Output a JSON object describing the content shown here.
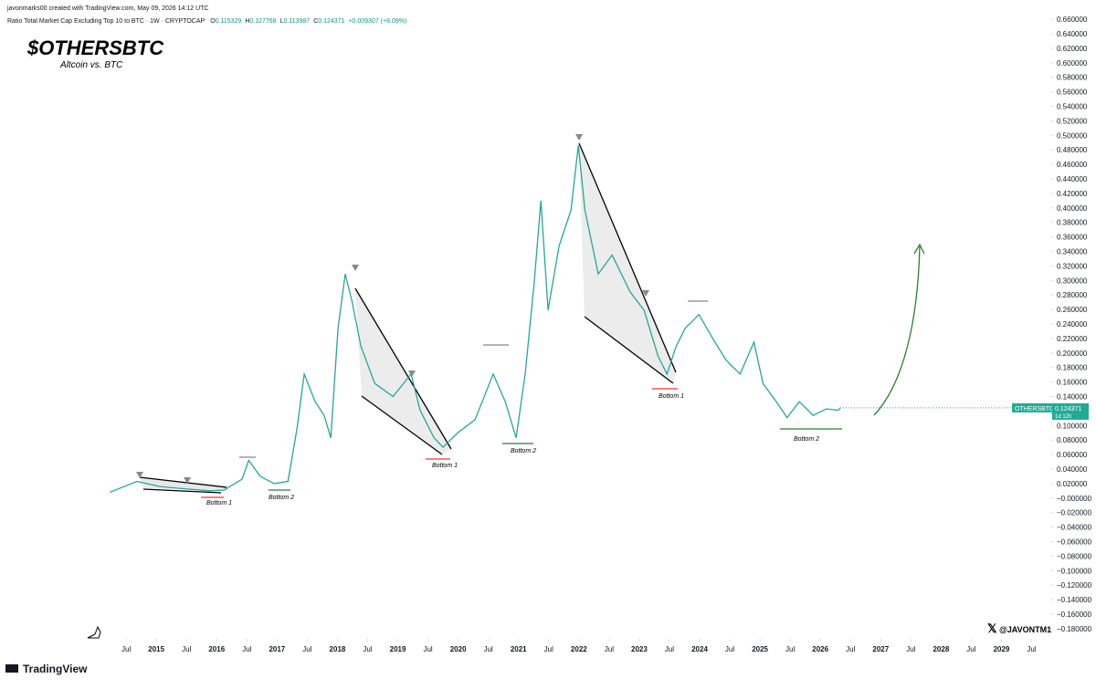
{
  "header": {
    "credit": "javonmarks00 created with TradingView.com, May 09, 2026 14:12 UTC",
    "symbol": "Ratio Total Market Cap Excluding Top 10 to BTC · 1W · CRYPTOCAP",
    "ohlc": [
      {
        "label": "O",
        "value": 0.115329
      },
      {
        "label": "H",
        "value": 0.127768
      },
      {
        "label": "L",
        "value": 0.113987
      },
      {
        "label": "C",
        "value": 0.124371
      }
    ],
    "change": "+0.009307 (+8.09%)"
  },
  "chart_data": {
    "type": "line",
    "title": "$OTHERSBTC",
    "subtitle": "Altcoin vs. BTC",
    "color": "#26a69a",
    "grid": false,
    "x": [
      2014.23,
      2014.68,
      2015.06,
      2015.44,
      2015.89,
      2016.12,
      2016.42,
      2016.53,
      2016.72,
      2016.95,
      2017.18,
      2017.33,
      2017.45,
      2017.63,
      2017.78,
      2017.89,
      2018.01,
      2018.13,
      2018.24,
      2018.39,
      2018.62,
      2018.92,
      2019.22,
      2019.37,
      2019.6,
      2019.75,
      2019.98,
      2020.28,
      2020.58,
      2020.78,
      2020.96,
      2021.11,
      2021.26,
      2021.37,
      2021.49,
      2021.67,
      2021.87,
      2021.99,
      2022.1,
      2022.32,
      2022.55,
      2022.85,
      2023.08,
      2023.31,
      2023.46,
      2023.61,
      2023.76,
      2023.99,
      2024.21,
      2024.44,
      2024.67,
      2024.9,
      2025.05,
      2025.27,
      2025.45,
      2025.65,
      2025.88,
      2026.1,
      2026.3,
      2026.33
    ],
    "series": [
      {
        "name": "OTHERSBTC",
        "color": "#26a69a",
        "values": [
          0.008,
          0.023,
          0.016,
          0.013,
          0.01,
          0.011,
          0.026,
          0.052,
          0.03,
          0.02,
          0.023,
          0.096,
          0.171,
          0.133,
          0.114,
          0.083,
          0.234,
          0.309,
          0.272,
          0.209,
          0.158,
          0.14,
          0.171,
          0.121,
          0.083,
          0.07,
          0.089,
          0.108,
          0.171,
          0.133,
          0.083,
          0.171,
          0.297,
          0.41,
          0.259,
          0.347,
          0.397,
          0.486,
          0.397,
          0.309,
          0.335,
          0.284,
          0.259,
          0.196,
          0.171,
          0.209,
          0.234,
          0.253,
          0.221,
          0.19,
          0.171,
          0.215,
          0.158,
          0.133,
          0.111,
          0.133,
          0.114,
          0.123,
          0.121,
          0.124371
        ]
      }
    ],
    "price_label": {
      "value": 0.124371,
      "countdown": "1d 12h"
    },
    "xlim": [
      2012.41,
      2029.81
    ],
    "ylim": [
      -0.194,
      0.669
    ],
    "xticks": [
      {
        "value": 2014.5,
        "label": "Jul"
      },
      2015,
      {
        "value": 2015.5,
        "label": "Jul"
      },
      2016,
      {
        "value": 2016.5,
        "label": "Jul"
      },
      2017,
      {
        "value": 2017.5,
        "label": "Jul"
      },
      2018,
      {
        "value": 2018.5,
        "label": "Jul"
      },
      2019,
      {
        "value": 2019.5,
        "label": "Jul"
      },
      2020,
      {
        "value": 2020.5,
        "label": "Jul"
      },
      2021,
      {
        "value": 2021.5,
        "label": "Jul"
      },
      2022,
      {
        "value": 2022.5,
        "label": "Jul"
      },
      2023,
      {
        "value": 2023.5,
        "label": "Jul"
      },
      2024,
      {
        "value": 2024.5,
        "label": "Jul"
      },
      2025,
      {
        "value": 2025.5,
        "label": "Jul"
      },
      2026,
      {
        "value": 2026.5,
        "label": "Jul"
      },
      2027,
      {
        "value": 2027.5,
        "label": "Jul"
      },
      2028,
      {
        "value": 2028.5,
        "label": "Jul"
      },
      2029,
      {
        "value": 2029.5,
        "label": "Jul"
      }
    ],
    "yticks": [
      {
        "value": 0.66,
        "label": "0.660000"
      },
      {
        "value": 0.64,
        "label": "0.640000"
      },
      {
        "value": 0.62,
        "label": "0.620000"
      },
      {
        "value": 0.6,
        "label": "0.600000"
      },
      {
        "value": 0.58,
        "label": "0.580000"
      },
      {
        "value": 0.56,
        "label": "0.560000"
      },
      {
        "value": 0.54,
        "label": "0.540000"
      },
      {
        "value": 0.52,
        "label": "0.520000"
      },
      {
        "value": 0.5,
        "label": "0.500000"
      },
      {
        "value": 0.48,
        "label": "0.480000"
      },
      {
        "value": 0.46,
        "label": "0.460000"
      },
      {
        "value": 0.44,
        "label": "0.440000"
      },
      {
        "value": 0.42,
        "label": "0.420000"
      },
      {
        "value": 0.4,
        "label": "0.400000"
      },
      {
        "value": 0.38,
        "label": "0.380000"
      },
      {
        "value": 0.36,
        "label": "0.360000"
      },
      {
        "value": 0.34,
        "label": "0.340000"
      },
      {
        "value": 0.32,
        "label": "0.320000"
      },
      {
        "value": 0.3,
        "label": "0.300000"
      },
      {
        "value": 0.28,
        "label": "0.280000"
      },
      {
        "value": 0.26,
        "label": "0.260000"
      },
      {
        "value": 0.24,
        "label": "0.240000"
      },
      {
        "value": 0.22,
        "label": "0.220000"
      },
      {
        "value": 0.2,
        "label": "0.200000"
      },
      {
        "value": 0.18,
        "label": "0.180000"
      },
      {
        "value": 0.16,
        "label": "0.160000"
      },
      {
        "value": 0.14,
        "label": "0.140000"
      },
      {
        "value": 0.12,
        "label": "0.120000"
      },
      {
        "value": 0.1,
        "label": "0.100000"
      },
      {
        "value": 0.08,
        "label": "0.080000"
      },
      {
        "value": 0.06,
        "label": "0.060000"
      },
      {
        "value": 0.04,
        "label": "0.040000"
      },
      {
        "value": 0.02,
        "label": "0.020000"
      },
      {
        "value": 0,
        "label": "−0.000000"
      },
      {
        "value": -0.02,
        "label": "−0.020000"
      },
      {
        "value": -0.04,
        "label": "−0.040000"
      },
      {
        "value": -0.06,
        "label": "−0.060000"
      },
      {
        "value": -0.08,
        "label": "−0.080000"
      },
      {
        "value": -0.1,
        "label": "−0.100000"
      },
      {
        "value": -0.12,
        "label": "−0.120000"
      },
      {
        "value": -0.14,
        "label": "−0.140000"
      },
      {
        "value": -0.16,
        "label": "−0.160000"
      },
      {
        "value": -0.18,
        "label": "−0.180000"
      }
    ],
    "annotations": [
      "Bottom 1",
      "Bottom 2",
      "Bottom 1",
      "Bottom 2",
      "Bottom 1",
      "Bottom 2"
    ]
  },
  "watermark": "@JAVONTM1",
  "brand": "TradingView"
}
